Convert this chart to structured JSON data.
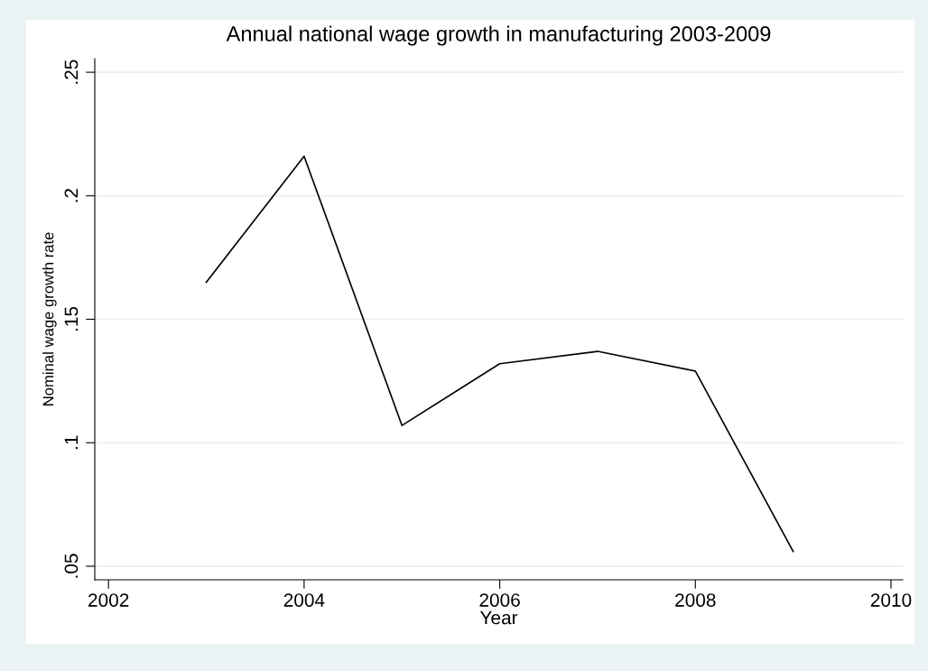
{
  "chart_data": {
    "type": "line",
    "title": "Annual national wage growth in manufacturing 2003-2009",
    "xlabel": "Year",
    "ylabel": "Nominal wage growth rate",
    "x": [
      2003,
      2004,
      2005,
      2006,
      2007,
      2008,
      2009
    ],
    "series": [
      {
        "color": "#000000",
        "values": [
          0.165,
          0.216,
          0.107,
          0.132,
          0.137,
          0.129,
          0.056
        ]
      }
    ],
    "xlim": [
      2001.86,
      2010.12
    ],
    "xticks": [
      2002,
      2004,
      2006,
      2008,
      2010
    ],
    "ylim": [
      0.0445,
      0.2555
    ],
    "yticks": [
      {
        "value": 0.05,
        "label": ".05"
      },
      {
        "value": 0.1,
        "label": ".1"
      },
      {
        "value": 0.15,
        "label": ".15"
      },
      {
        "value": 0.2,
        "label": ".2"
      },
      {
        "value": 0.25,
        "label": ".25"
      }
    ],
    "grid": "y",
    "marker": "none",
    "line_style": "solid"
  }
}
